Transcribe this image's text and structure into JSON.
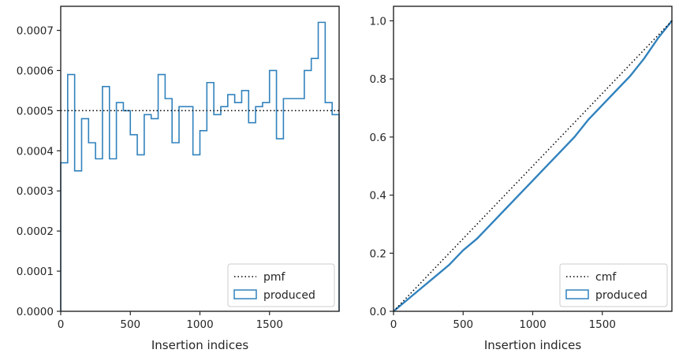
{
  "chart_data": [
    {
      "type": "histogram-step",
      "xlabel": "Insertion indices",
      "ylabel": "",
      "xlim": [
        0,
        2000
      ],
      "ylim": [
        0,
        0.00076
      ],
      "xticks": [
        0,
        500,
        1000,
        1500
      ],
      "xtick_labels": [
        "0",
        "500",
        "1000",
        "1500"
      ],
      "yticks": [
        0,
        0.0001,
        0.0002,
        0.0003,
        0.0004,
        0.0005,
        0.0006,
        0.0007
      ],
      "ytick_labels": [
        "0.0000",
        "0.0001",
        "0.0002",
        "0.0003",
        "0.0004",
        "0.0005",
        "0.0006",
        "0.0007"
      ],
      "bin_width": 50,
      "series": [
        {
          "name": "produced",
          "style": "step",
          "color": "#3182bd",
          "values": [
            0.00037,
            0.00059,
            0.00035,
            0.00048,
            0.00042,
            0.00038,
            0.00056,
            0.00038,
            0.00052,
            0.0005,
            0.00044,
            0.00039,
            0.00049,
            0.00048,
            0.00059,
            0.00053,
            0.00042,
            0.00051,
            0.00051,
            0.00039,
            0.00045,
            0.00057,
            0.00049,
            0.00051,
            0.00054,
            0.00052,
            0.00055,
            0.00047,
            0.00051,
            0.00052,
            0.0006,
            0.00043,
            0.00053,
            0.00053,
            0.00053,
            0.0006,
            0.00063,
            0.00072,
            0.00052,
            0.00049
          ]
        },
        {
          "name": "pmf",
          "style": "dotted",
          "color": "#000000",
          "value": 0.0005
        }
      ],
      "legend": {
        "location": "lower-right",
        "entries": [
          "pmf",
          "produced"
        ]
      },
      "grid": false
    },
    {
      "type": "line",
      "xlabel": "Insertion indices",
      "ylabel": "",
      "xlim": [
        0,
        2000
      ],
      "ylim": [
        0,
        1.05
      ],
      "xticks": [
        0,
        500,
        1000,
        1500
      ],
      "xtick_labels": [
        "0",
        "500",
        "1000",
        "1500"
      ],
      "yticks": [
        0,
        0.2,
        0.4,
        0.6,
        0.8,
        1.0
      ],
      "ytick_labels": [
        "0.0",
        "0.2",
        "0.4",
        "0.6",
        "0.8",
        "1.0"
      ],
      "series": [
        {
          "name": "produced",
          "style": "solid",
          "color": "#3182bd",
          "x": [
            0,
            100,
            200,
            300,
            400,
            500,
            600,
            700,
            800,
            900,
            1000,
            1100,
            1200,
            1300,
            1400,
            1500,
            1600,
            1700,
            1800,
            1900,
            2000
          ],
          "y": [
            0,
            0.04,
            0.08,
            0.12,
            0.16,
            0.21,
            0.25,
            0.3,
            0.35,
            0.4,
            0.45,
            0.5,
            0.55,
            0.6,
            0.66,
            0.71,
            0.76,
            0.81,
            0.87,
            0.94,
            1.0
          ]
        },
        {
          "name": "cmf",
          "style": "dotted",
          "color": "#000000",
          "x": [
            0,
            2000
          ],
          "y": [
            0,
            1.0
          ]
        }
      ],
      "legend": {
        "location": "lower-right",
        "entries": [
          "cmf",
          "produced"
        ]
      },
      "grid": false
    }
  ]
}
